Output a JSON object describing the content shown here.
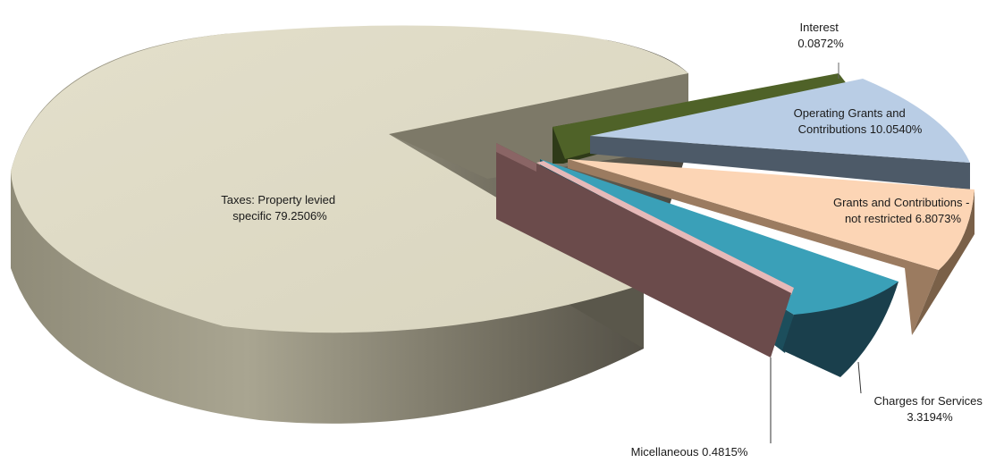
{
  "chart_data": {
    "type": "pie",
    "title": "",
    "categories": [
      "Taxes: Property levied specific",
      "Interest",
      "Operating Grants and Contributions",
      "Grants and Contributions - not restricted",
      "Charges for Services",
      "Micellaneous"
    ],
    "values": [
      79.2506,
      0.0872,
      10.054,
      6.8073,
      3.3194,
      0.4815
    ],
    "exploded": true,
    "three_d": true,
    "colors": [
      "#ddd9c3",
      "#4f6228",
      "#b9cde5",
      "#fcd5b5",
      "#31859c",
      "#e6b9b8"
    ],
    "labels": {
      "taxes": [
        "Taxes: Property levied",
        "specific     79.2506%"
      ],
      "interest": [
        "Interest",
        "0.0872%"
      ],
      "operating": [
        "Operating Grants and",
        "Contributions  10.0540%"
      ],
      "grants": [
        "Grants and Contributions -",
        "not restricted  6.8073%"
      ],
      "charges": [
        "Charges for Services",
        "3.3194%"
      ],
      "misc": [
        "Micellaneous  0.4815%"
      ]
    }
  }
}
